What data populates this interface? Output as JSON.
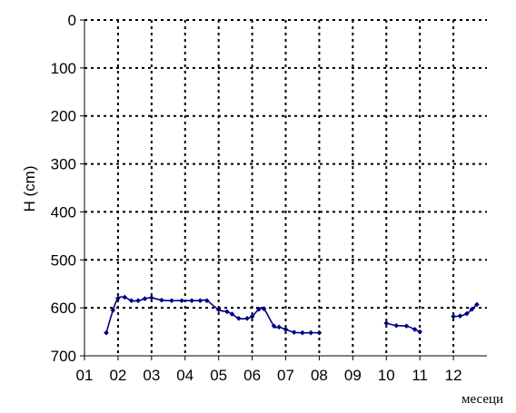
{
  "chart_data": {
    "type": "line",
    "title": "",
    "xlabel": "месеци",
    "ylabel": "H (cm)",
    "x_tick_labels": [
      "01",
      "02",
      "03",
      "04",
      "05",
      "06",
      "07",
      "08",
      "09",
      "10",
      "11",
      "12"
    ],
    "y_tick_labels": [
      "0",
      "100",
      "200",
      "300",
      "400",
      "500",
      "600",
      "700"
    ],
    "y_ticks": [
      0,
      100,
      200,
      300,
      400,
      500,
      600,
      700
    ],
    "ylim": [
      0,
      700
    ],
    "y_inverted": true,
    "xlim": [
      1,
      13
    ],
    "grid": true,
    "grid_style": "dotted",
    "line_color": "#000080",
    "series": [
      {
        "values": [
          [
            1.65,
            652
          ],
          [
            1.85,
            605
          ],
          [
            2.0,
            580
          ],
          [
            2.2,
            578
          ],
          [
            2.4,
            585
          ],
          [
            2.6,
            585
          ],
          [
            2.8,
            581
          ],
          [
            3.0,
            579
          ],
          [
            3.3,
            584
          ],
          [
            3.6,
            585
          ],
          [
            3.9,
            585
          ],
          [
            4.2,
            585
          ],
          [
            4.45,
            585
          ],
          [
            4.65,
            585
          ],
          [
            5.0,
            604
          ],
          [
            5.25,
            608
          ],
          [
            5.4,
            613
          ],
          [
            5.6,
            622
          ],
          [
            5.85,
            622
          ],
          [
            6.0,
            618
          ],
          [
            6.2,
            603
          ],
          [
            6.35,
            602
          ],
          [
            6.65,
            638
          ],
          [
            6.8,
            640
          ],
          [
            7.0,
            645
          ],
          [
            7.25,
            651
          ],
          [
            7.5,
            652
          ],
          [
            7.75,
            652
          ],
          [
            8.0,
            652
          ]
        ]
      },
      {
        "values": [
          [
            10.0,
            632
          ],
          [
            10.3,
            637
          ],
          [
            10.6,
            638
          ],
          [
            10.85,
            645
          ],
          [
            11.0,
            650
          ]
        ]
      },
      {
        "values": [
          [
            12.0,
            618
          ],
          [
            12.2,
            617
          ],
          [
            12.4,
            612
          ],
          [
            12.55,
            603
          ],
          [
            12.7,
            593
          ]
        ]
      }
    ]
  }
}
